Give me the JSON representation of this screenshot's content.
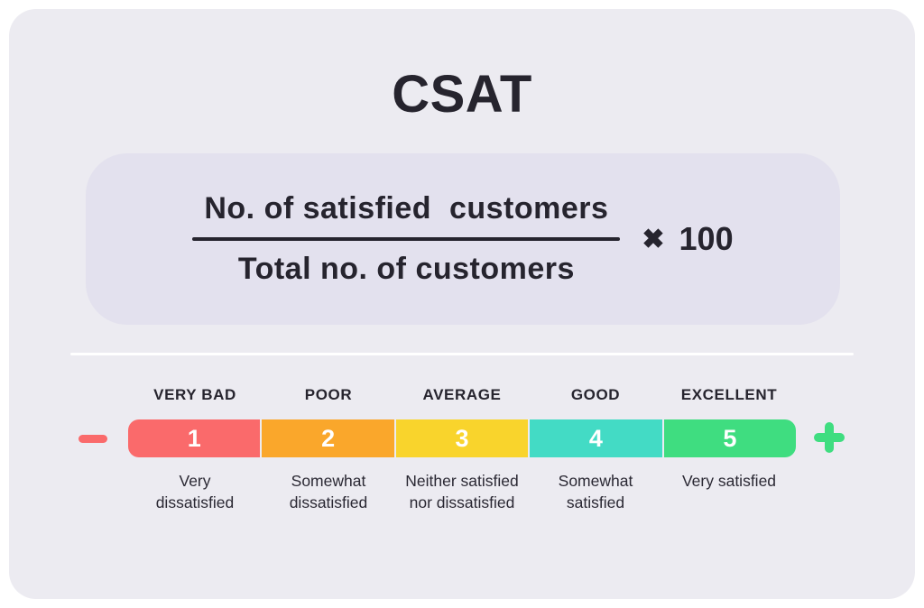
{
  "title": "CSAT",
  "formula": {
    "numerator": "No. of satisfied  customers",
    "denominator": "Total no. of customers",
    "times_symbol": "✖",
    "multiplier": "100"
  },
  "scale": {
    "minus_symbol_color": "#FA6A6B",
    "plus_symbol_color": "#3FDD80",
    "items": [
      {
        "label": "VERY BAD",
        "value": "1",
        "color": "#FA6A6B",
        "description_line1": "Very",
        "description_line2": "dissatisfied"
      },
      {
        "label": "POOR",
        "value": "2",
        "color": "#FAA72B",
        "description_line1": "Somewhat",
        "description_line2": "dissatisfied"
      },
      {
        "label": "AVERAGE",
        "value": "3",
        "color": "#F9D42C",
        "description_line1": "Neither satisfied",
        "description_line2": "nor dissatisfied"
      },
      {
        "label": "GOOD",
        "value": "4",
        "color": "#43DBC5",
        "description_line1": "Somewhat",
        "description_line2": "satisfied"
      },
      {
        "label": "EXCELLENT",
        "value": "5",
        "color": "#3FDD80",
        "description_line1": "Very satisfied",
        "description_line2": ""
      }
    ]
  }
}
